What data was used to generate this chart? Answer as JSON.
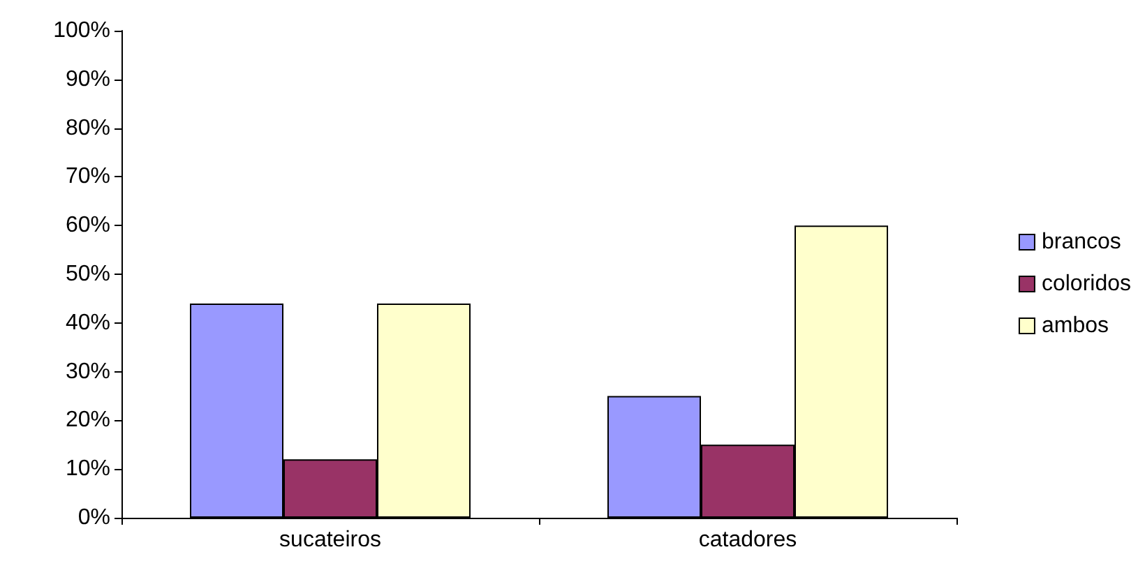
{
  "chart_data": {
    "type": "bar",
    "categories": [
      "sucateiros",
      "catadores"
    ],
    "series": [
      {
        "name": "brancos",
        "color": "#9999ff",
        "values": [
          44,
          25
        ]
      },
      {
        "name": "coloridos",
        "color": "#993366",
        "values": [
          12,
          15
        ]
      },
      {
        "name": "ambos",
        "color": "#ffffcc",
        "values": [
          44,
          60
        ]
      }
    ],
    "ylim": [
      0,
      100
    ],
    "yticks": [
      {
        "value": 0,
        "label": "0%"
      },
      {
        "value": 10,
        "label": "10%"
      },
      {
        "value": 20,
        "label": "20%"
      },
      {
        "value": 30,
        "label": "30%"
      },
      {
        "value": 40,
        "label": "40%"
      },
      {
        "value": 50,
        "label": "50%"
      },
      {
        "value": 60,
        "label": "60%"
      },
      {
        "value": 70,
        "label": "70%"
      },
      {
        "value": 80,
        "label": "80%"
      },
      {
        "value": 90,
        "label": "90%"
      },
      {
        "value": 100,
        "label": "100%"
      }
    ],
    "grid": false,
    "legend": "right"
  }
}
